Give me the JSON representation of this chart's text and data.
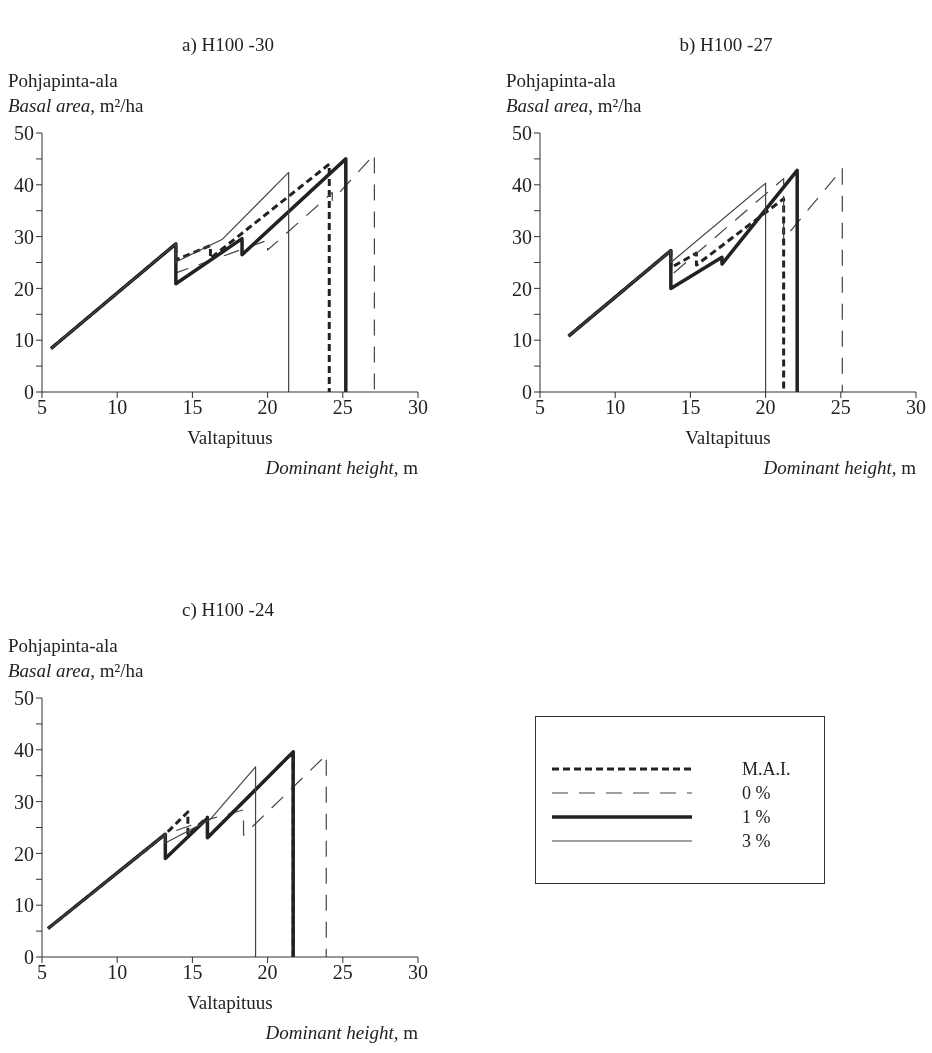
{
  "chart_data": [
    {
      "type": "line",
      "title": "a) H100 -30",
      "ylabel": "Pohjapinta-ala\nBasal area, m²/ha",
      "xlabel": "Valtapituus\nDominant height, m",
      "xlim": [
        5,
        30
      ],
      "xticks": [
        5,
        10,
        15,
        20,
        25,
        30
      ],
      "ylim": [
        0,
        50
      ],
      "yticks": [
        0,
        {
          "value": 5,
          "label": null
        },
        10,
        {
          "value": 15,
          "label": null
        },
        20,
        {
          "value": 25,
          "label": null
        },
        30,
        {
          "value": 35,
          "label": null
        },
        40,
        {
          "value": 45,
          "label": null
        },
        50
      ],
      "series": [
        {
          "color": "#222222",
          "line_style": "dashed",
          "x": [
            5.6,
            13.9,
            13.9,
            16.2,
            16.2,
            24.1,
            24.1
          ],
          "values": [
            8.4,
            28.6,
            25.5,
            28.3,
            25.8,
            44,
            0
          ]
        },
        {
          "color": "#444444",
          "line_style": "dashed",
          "x": [
            5.6,
            13.9,
            13.9,
            20,
            20,
            24.3,
            24.3,
            27.1,
            27.1
          ],
          "values": [
            8.4,
            28.6,
            23,
            29.3,
            27.4,
            38.5,
            37,
            45.9,
            0
          ]
        },
        {
          "color": "#222222",
          "line_style": "solid",
          "x": [
            5.6,
            13.9,
            13.9,
            18.3,
            18.3,
            25.2,
            25.2
          ],
          "values": [
            8.4,
            28.6,
            20.9,
            29.6,
            26.5,
            45,
            0
          ]
        },
        {
          "color": "#444444",
          "line_style": "solid",
          "x": [
            5.6,
            13.9,
            13.9,
            17,
            21.4,
            21.4
          ],
          "values": [
            8.4,
            28.6,
            25.1,
            29.5,
            42.4,
            0
          ]
        }
      ]
    },
    {
      "type": "line",
      "title": "b) H100 -27",
      "ylabel": "Pohjapinta-ala\nBasal area, m²/ha",
      "xlabel": "Valtapituus\nDominant height, m",
      "xlim": [
        5,
        30
      ],
      "xticks": [
        5,
        10,
        15,
        20,
        25,
        30
      ],
      "ylim": [
        0,
        50
      ],
      "yticks": [
        0,
        {
          "value": 5,
          "label": null
        },
        10,
        {
          "value": 15,
          "label": null
        },
        20,
        {
          "value": 25,
          "label": null
        },
        30,
        {
          "value": 35,
          "label": null
        },
        40,
        {
          "value": 45,
          "label": null
        },
        50
      ],
      "series": [
        {
          "color": "#222222",
          "line_style": "dashed",
          "x": [
            6.9,
            13.7,
            13.7,
            15.4,
            15.4,
            21.2,
            21.2
          ],
          "values": [
            10.8,
            27.3,
            24,
            26.8,
            24.5,
            37.3,
            0
          ]
        },
        {
          "color": "#444444",
          "line_style": "dashed",
          "x": [
            6.9,
            13.7,
            13.7,
            21.2,
            21.2,
            25.1,
            25.1
          ],
          "values": [
            10.8,
            27.3,
            22.5,
            41.2,
            29.5,
            43.1,
            0
          ]
        },
        {
          "color": "#222222",
          "line_style": "solid",
          "x": [
            6.9,
            13.7,
            13.7,
            17.1,
            17.1,
            22.1,
            22.1
          ],
          "values": [
            10.8,
            27.3,
            20,
            26,
            24.7,
            42.8,
            0
          ]
        },
        {
          "color": "#444444",
          "line_style": "solid",
          "x": [
            6.9,
            13.7,
            13.7,
            20,
            20
          ],
          "values": [
            10.8,
            27.3,
            25,
            40.3,
            0
          ]
        }
      ]
    },
    {
      "type": "line",
      "title": "c) H100 -24",
      "ylabel": "Pohjapinta-ala\nBasal area, m²/ha",
      "xlabel": "Valtapituus\nDominant height, m",
      "xlim": [
        5,
        30
      ],
      "xticks": [
        5,
        10,
        15,
        20,
        25,
        30
      ],
      "ylim": [
        0,
        50
      ],
      "yticks": [
        0,
        {
          "value": 5,
          "label": null
        },
        10,
        {
          "value": 15,
          "label": null
        },
        20,
        {
          "value": 25,
          "label": null
        },
        30,
        {
          "value": 35,
          "label": null
        },
        40,
        {
          "value": 45,
          "label": null
        },
        50
      ],
      "legend": "right",
      "series": [
        {
          "name": "M.A.I.",
          "color": "#222222",
          "line_style": "dashed",
          "x": [
            5.4,
            13.2,
            14.7,
            14.7,
            16,
            16,
            21.7,
            21.7
          ],
          "values": [
            5.5,
            23.7,
            28,
            23.5,
            27,
            23,
            39.6,
            0
          ]
        },
        {
          "name": "0 %",
          "color": "#444444",
          "line_style": "dashed",
          "x": [
            5.4,
            13.2,
            16,
            18.4,
            18.4,
            23.9,
            23.9
          ],
          "values": [
            5.5,
            23.7,
            26.5,
            28.4,
            23.5,
            39,
            0
          ]
        },
        {
          "name": "1 %",
          "color": "#222222",
          "line_style": "solid",
          "x": [
            5.4,
            13.2,
            13.2,
            16,
            16,
            21.7,
            21.7
          ],
          "values": [
            5.5,
            23.7,
            19,
            26.8,
            23,
            39.6,
            0
          ]
        },
        {
          "name": "3 %",
          "color": "#444444",
          "line_style": "solid",
          "x": [
            5.4,
            13.2,
            13.2,
            16.2,
            19.2,
            19.2
          ],
          "values": [
            5.5,
            23.7,
            22,
            26.6,
            36.7,
            0
          ]
        }
      ]
    }
  ]
}
